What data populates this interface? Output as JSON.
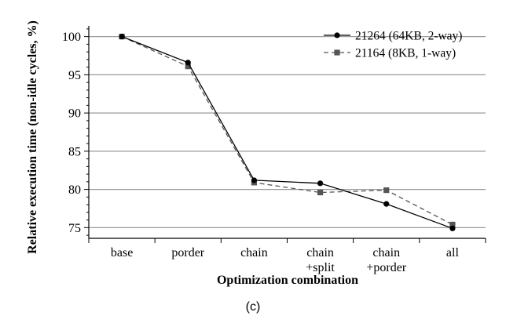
{
  "chart_data": {
    "type": "line",
    "categories": [
      [
        "base"
      ],
      [
        "porder"
      ],
      [
        "chain"
      ],
      [
        "chain",
        "+split"
      ],
      [
        "chain",
        "+porder"
      ],
      [
        "all"
      ]
    ],
    "series": [
      {
        "name": "21264 (64KB, 2-way)",
        "values": [
          100,
          96.6,
          81.2,
          80.8,
          78.1,
          74.9
        ],
        "color": "#000000",
        "marker": "circle",
        "line_style": "solid"
      },
      {
        "name": "21164 (8KB, 1-way)",
        "values": [
          100,
          96.1,
          80.9,
          79.6,
          79.9,
          75.4
        ],
        "color": "#555555",
        "marker": "square",
        "line_style": "dashed"
      }
    ],
    "xlabel": "Optimization combination",
    "ylabel": "Relative execution time (non-idle cycles, %)",
    "ylim": [
      73.6,
      101.4
    ],
    "yticks": [
      75,
      80,
      85,
      90,
      95,
      100
    ],
    "grid": "horizontal",
    "legend_position": "top-right"
  },
  "caption": "(c)"
}
